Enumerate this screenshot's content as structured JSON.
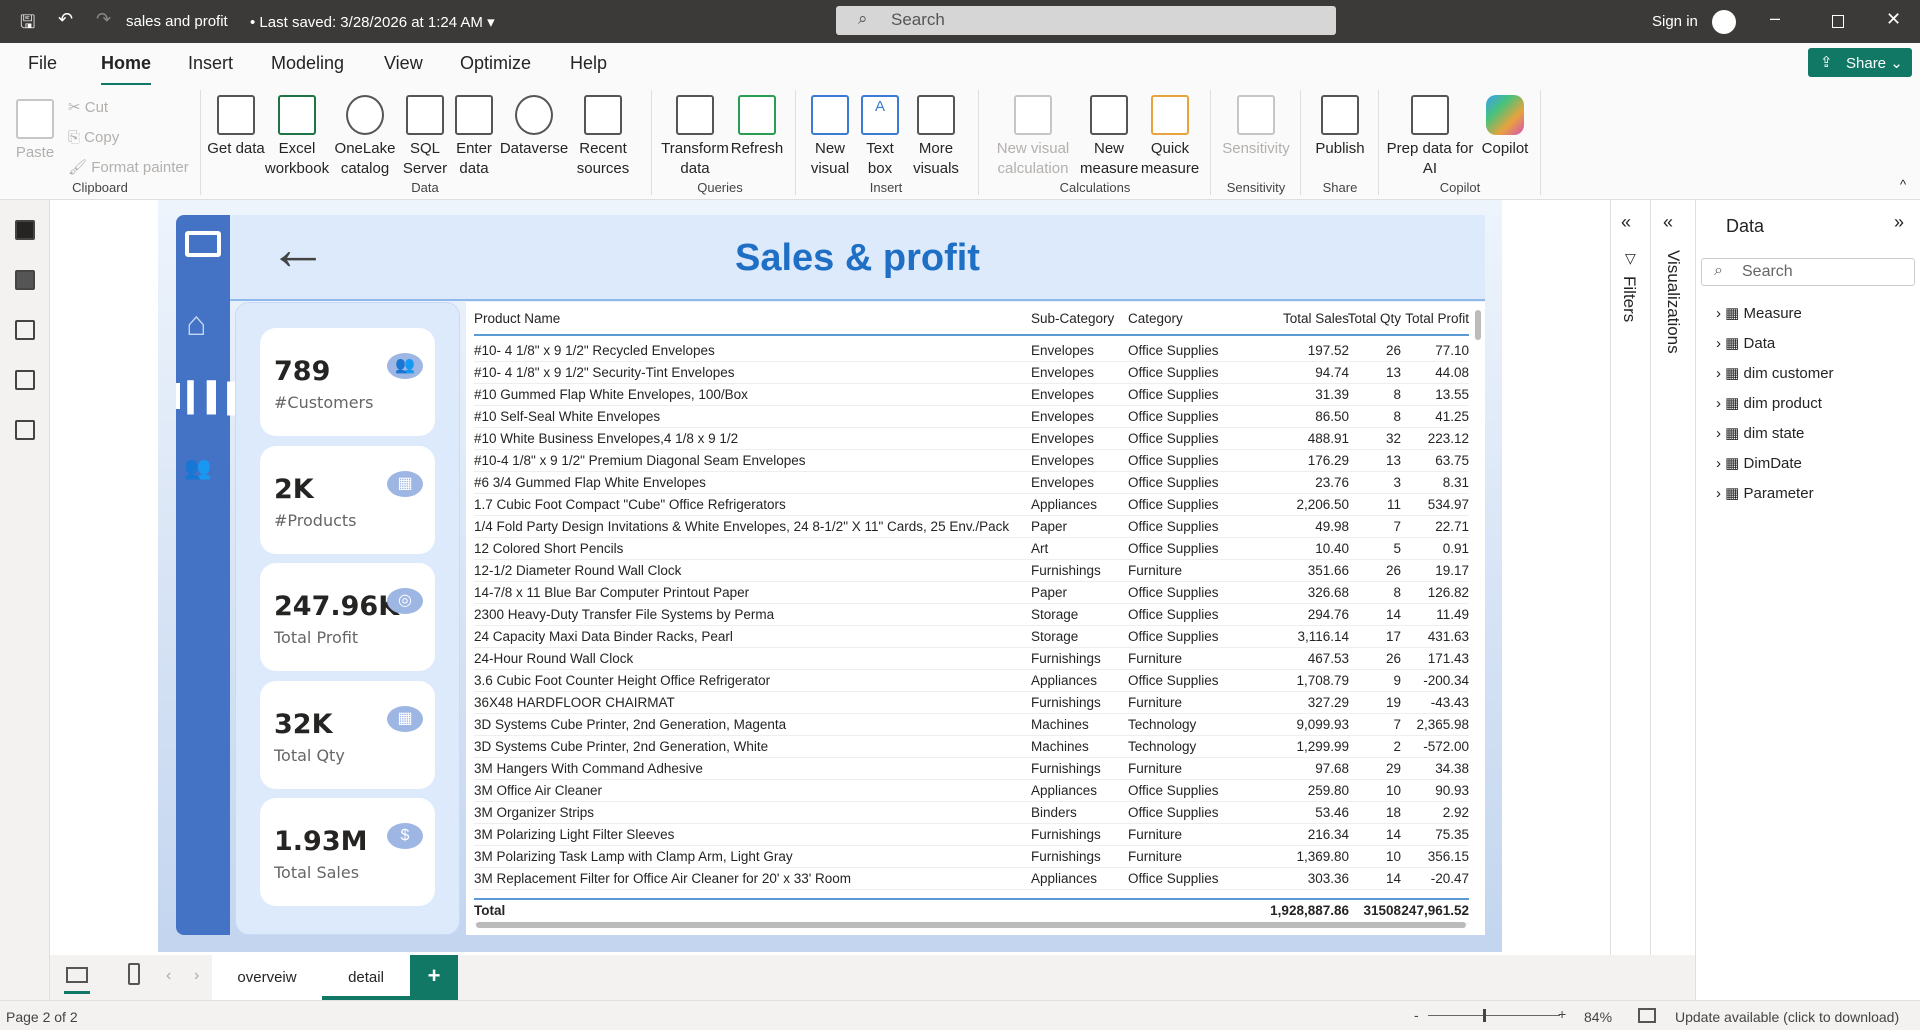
{
  "titlebar": {
    "doc_title": "sales and profit",
    "saved": "Last saved: 3/28/2026 at 1:24 AM",
    "search_placeholder": "Search",
    "sign_in": "Sign in"
  },
  "menu": {
    "tabs": [
      "File",
      "Home",
      "Insert",
      "Modeling",
      "View",
      "Optimize",
      "Help"
    ],
    "active": "Home",
    "share": "Share"
  },
  "ribbon": {
    "clipboard": {
      "paste": "Paste",
      "cut": "Cut",
      "copy": "Copy",
      "format_painter": "Format painter",
      "group": "Clipboard"
    },
    "data": {
      "items": [
        "Get data",
        "Excel workbook",
        "OneLake catalog",
        "SQL Server",
        "Enter data",
        "Dataverse",
        "Recent sources"
      ],
      "group": "Data"
    },
    "queries": {
      "items": [
        "Transform data",
        "Refresh"
      ],
      "group": "Queries"
    },
    "insert": {
      "items": [
        "New visual",
        "Text box",
        "More visuals"
      ],
      "group": "Insert"
    },
    "calculations": {
      "items": [
        "New visual calculation",
        "New measure",
        "Quick measure"
      ],
      "group": "Calculations"
    },
    "sensitivity": {
      "items": [
        "Sensitivity"
      ],
      "group": "Sensitivity"
    },
    "share": {
      "items": [
        "Publish"
      ],
      "group": "Share"
    },
    "copilot": {
      "items": [
        "Prep data for AI",
        "Copilot"
      ],
      "group": "Copilot"
    }
  },
  "report": {
    "title": "Sales & profit",
    "cards": [
      {
        "value": "789",
        "label": "#Customers",
        "icon": "people-icon"
      },
      {
        "value": "2K",
        "label": "#Products",
        "icon": "boxes-icon"
      },
      {
        "value": "247.96K",
        "label": "Total Profit",
        "icon": "coins-icon"
      },
      {
        "value": "32K",
        "label": "Total Qty",
        "icon": "boxes-icon"
      },
      {
        "value": "1.93M",
        "label": "Total Sales",
        "icon": "dollar-icon"
      }
    ],
    "table": {
      "columns": [
        "Product Name",
        "Sub-Category",
        "Category",
        "Total Sales",
        "Total Qty",
        "Total Profit"
      ],
      "rows": [
        [
          "#10- 4 1/8\" x 9 1/2\" Recycled Envelopes",
          "Envelopes",
          "Office Supplies",
          "197.52",
          "26",
          "77.10"
        ],
        [
          "#10- 4 1/8\" x 9 1/2\" Security-Tint Envelopes",
          "Envelopes",
          "Office Supplies",
          "94.74",
          "13",
          "44.08"
        ],
        [
          "#10 Gummed Flap White Envelopes, 100/Box",
          "Envelopes",
          "Office Supplies",
          "31.39",
          "8",
          "13.55"
        ],
        [
          "#10 Self-Seal White Envelopes",
          "Envelopes",
          "Office Supplies",
          "86.50",
          "8",
          "41.25"
        ],
        [
          "#10 White Business Envelopes,4 1/8 x 9 1/2",
          "Envelopes",
          "Office Supplies",
          "488.91",
          "32",
          "223.12"
        ],
        [
          "#10-4 1/8\" x 9 1/2\" Premium Diagonal Seam Envelopes",
          "Envelopes",
          "Office Supplies",
          "176.29",
          "13",
          "63.75"
        ],
        [
          "#6 3/4 Gummed Flap White Envelopes",
          "Envelopes",
          "Office Supplies",
          "23.76",
          "3",
          "8.31"
        ],
        [
          "1.7 Cubic Foot Compact \"Cube\" Office Refrigerators",
          "Appliances",
          "Office Supplies",
          "2,206.50",
          "11",
          "534.97"
        ],
        [
          "1/4 Fold Party Design Invitations & White Envelopes, 24 8-1/2\" X 11\" Cards, 25 Env./Pack",
          "Paper",
          "Office Supplies",
          "49.98",
          "7",
          "22.71"
        ],
        [
          "12 Colored Short Pencils",
          "Art",
          "Office Supplies",
          "10.40",
          "5",
          "0.91"
        ],
        [
          "12-1/2 Diameter Round Wall Clock",
          "Furnishings",
          "Furniture",
          "351.66",
          "26",
          "19.17"
        ],
        [
          "14-7/8 x 11 Blue Bar Computer Printout Paper",
          "Paper",
          "Office Supplies",
          "326.68",
          "8",
          "126.82"
        ],
        [
          "2300 Heavy-Duty Transfer File Systems by Perma",
          "Storage",
          "Office Supplies",
          "294.76",
          "14",
          "11.49"
        ],
        [
          "24 Capacity Maxi Data Binder Racks, Pearl",
          "Storage",
          "Office Supplies",
          "3,116.14",
          "17",
          "431.63"
        ],
        [
          "24-Hour Round Wall Clock",
          "Furnishings",
          "Furniture",
          "467.53",
          "26",
          "171.43"
        ],
        [
          "3.6 Cubic Foot Counter Height Office Refrigerator",
          "Appliances",
          "Office Supplies",
          "1,708.79",
          "9",
          "-200.34"
        ],
        [
          "36X48 HARDFLOOR CHAIRMAT",
          "Furnishings",
          "Furniture",
          "327.29",
          "19",
          "-43.43"
        ],
        [
          "3D Systems Cube Printer, 2nd Generation, Magenta",
          "Machines",
          "Technology",
          "9,099.93",
          "7",
          "2,365.98"
        ],
        [
          "3D Systems Cube Printer, 2nd Generation, White",
          "Machines",
          "Technology",
          "1,299.99",
          "2",
          "-572.00"
        ],
        [
          "3M Hangers With Command Adhesive",
          "Furnishings",
          "Furniture",
          "97.68",
          "29",
          "34.38"
        ],
        [
          "3M Office Air Cleaner",
          "Appliances",
          "Office Supplies",
          "259.80",
          "10",
          "90.93"
        ],
        [
          "3M Organizer Strips",
          "Binders",
          "Office Supplies",
          "53.46",
          "18",
          "2.92"
        ],
        [
          "3M Polarizing Light Filter Sleeves",
          "Furnishings",
          "Furniture",
          "216.34",
          "14",
          "75.35"
        ],
        [
          "3M Polarizing Task Lamp with Clamp Arm, Light Gray",
          "Furnishings",
          "Furniture",
          "1,369.80",
          "10",
          "356.15"
        ],
        [
          "3M Replacement Filter for Office Air Cleaner for 20' x 33' Room",
          "Appliances",
          "Office Supplies",
          "303.36",
          "14",
          "-20.47"
        ]
      ],
      "total": [
        "Total",
        "",
        "",
        "1,928,887.86",
        "31508",
        "247,961.52"
      ]
    }
  },
  "panes": {
    "filters": "Filters",
    "visualizations": "Visualizations",
    "data": {
      "title": "Data",
      "search_placeholder": "Search",
      "items": [
        "Measure",
        "Data",
        "dim customer",
        "dim product",
        "dim state",
        "DimDate",
        "Parameter"
      ]
    }
  },
  "pages": {
    "tabs": [
      "overveiw",
      "detail"
    ],
    "active": "detail",
    "add": "+"
  },
  "status": {
    "page": "Page 2 of 2",
    "zoom": "84%",
    "update": "Update available (click to download)",
    "zoom_level_percent": 84
  },
  "colors": {
    "accent": "#117865",
    "report_title": "#1f6fc5",
    "nav_bar": "#4472c4"
  }
}
